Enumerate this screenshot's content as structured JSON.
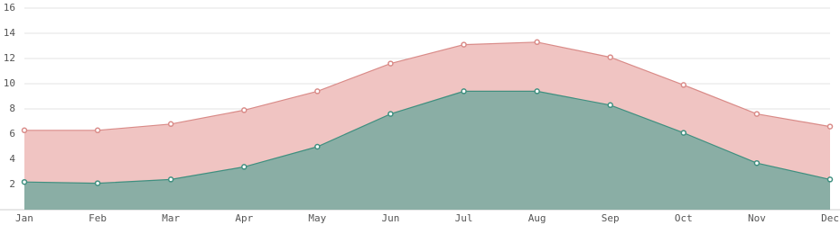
{
  "chart_data": {
    "type": "area",
    "categories": [
      "Jan",
      "Feb",
      "Mar",
      "Apr",
      "May",
      "Jun",
      "Jul",
      "Aug",
      "Sep",
      "Oct",
      "Nov",
      "Dec"
    ],
    "series": [
      {
        "color": "#d98b88",
        "fill": "#f0c4c2",
        "values": [
          6.3,
          6.3,
          6.8,
          7.9,
          9.4,
          11.6,
          13.1,
          13.3,
          12.1,
          9.9,
          7.6,
          6.6
        ]
      },
      {
        "color": "#3f8f7f",
        "fill": "#8aaea5",
        "values": [
          2.2,
          2.1,
          2.4,
          3.4,
          5.0,
          7.6,
          9.4,
          9.4,
          8.3,
          6.1,
          3.7,
          2.4
        ]
      }
    ],
    "ylim": [
      0,
      16
    ],
    "yticks": [
      2,
      4,
      6,
      8,
      10,
      12,
      14,
      16
    ],
    "grid": true
  }
}
